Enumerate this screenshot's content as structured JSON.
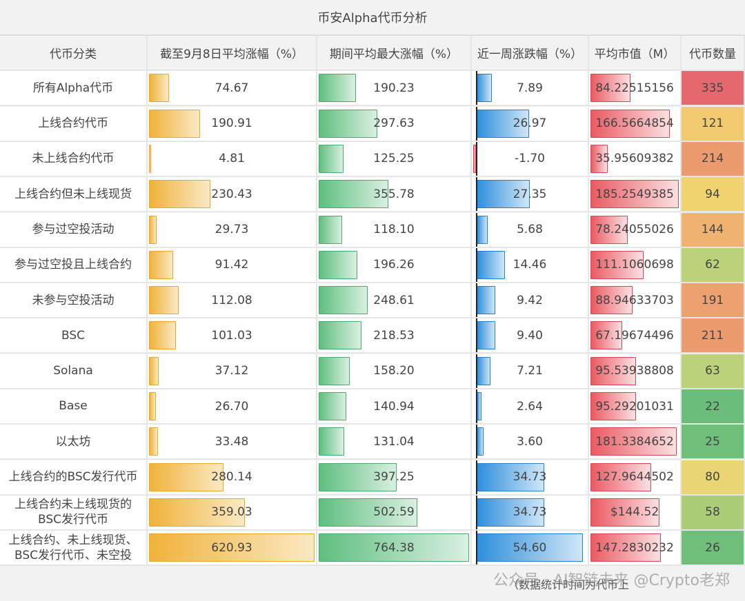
{
  "title": "币安Alpha代币分析",
  "chart_data": {
    "type": "table",
    "columns": [
      "代币分类",
      "截至9月8日平均涨幅（%）",
      "期间平均最大涨幅（%）",
      "近一周涨跌幅（%）",
      "平均市值（M）",
      "代币数量"
    ],
    "rows": [
      {
        "category": "所有Alpha代币",
        "avg_gain": "74.67",
        "avg_max_gain": "190.23",
        "weekly_change": "7.89",
        "avg_mcap": "84.22515156",
        "count": "335",
        "count_color": "#e5686e"
      },
      {
        "category": "上线合约代币",
        "avg_gain": "190.91",
        "avg_max_gain": "297.63",
        "weekly_change": "26.97",
        "avg_mcap": "166.5664854",
        "count": "121",
        "count_color": "#f1c96f"
      },
      {
        "category": "未上线合约代币",
        "avg_gain": "4.81",
        "avg_max_gain": "125.25",
        "weekly_change": "-1.70",
        "avg_mcap": "35.95609382",
        "count": "214",
        "count_color": "#ec9b6f"
      },
      {
        "category": "上线合约但未上线现货",
        "avg_gain": "230.43",
        "avg_max_gain": "355.78",
        "weekly_change": "27.35",
        "avg_mcap": "185.2549385",
        "count": "94",
        "count_color": "#f0d36f"
      },
      {
        "category": "参与过空投活动",
        "avg_gain": "29.73",
        "avg_max_gain": "118.10",
        "weekly_change": "5.68",
        "avg_mcap": "78.24055026",
        "count": "144",
        "count_color": "#efb270"
      },
      {
        "category": "参与过空投且上线合约",
        "avg_gain": "91.42",
        "avg_max_gain": "196.26",
        "weekly_change": "14.46",
        "avg_mcap": "111.1060698",
        "count": "62",
        "count_color": "#bcd27a"
      },
      {
        "category": "未参与空投活动",
        "avg_gain": "112.08",
        "avg_max_gain": "248.61",
        "weekly_change": "9.42",
        "avg_mcap": "88.94633703",
        "count": "191",
        "count_color": "#eda170"
      },
      {
        "category": "BSC",
        "avg_gain": "101.03",
        "avg_max_gain": "218.53",
        "weekly_change": "9.40",
        "avg_mcap": "67.19674496",
        "count": "211",
        "count_color": "#ec9b6f"
      },
      {
        "category": "Solana",
        "avg_gain": "37.12",
        "avg_max_gain": "158.20",
        "weekly_change": "7.21",
        "avg_mcap": "95.53938808",
        "count": "63",
        "count_color": "#bcd27a"
      },
      {
        "category": "Base",
        "avg_gain": "26.70",
        "avg_max_gain": "140.94",
        "weekly_change": "2.64",
        "avg_mcap": "95.29201031",
        "count": "22",
        "count_color": "#6bbd7b"
      },
      {
        "category": "以太坊",
        "avg_gain": "33.48",
        "avg_max_gain": "131.04",
        "weekly_change": "3.60",
        "avg_mcap": "181.3384652",
        "count": "25",
        "count_color": "#6fbf7b"
      },
      {
        "category": "上线合约的BSC发行代币",
        "avg_gain": "280.14",
        "avg_max_gain": "397.25",
        "weekly_change": "34.73",
        "avg_mcap": "127.9644502",
        "count": "80",
        "count_color": "#e9d574"
      },
      {
        "category": "上线合约未上线现货的BSC发行代币",
        "avg_gain": "359.03",
        "avg_max_gain": "502.59",
        "weekly_change": "34.73",
        "avg_mcap": "$144.52",
        "count": "58",
        "count_color": "#abcd78"
      },
      {
        "category": "上线合约、未上线现货、BSC发行代币、未空投",
        "avg_gain": "620.93",
        "avg_max_gain": "764.38",
        "weekly_change": "54.60",
        "avg_mcap": "147.2830232",
        "count": "26",
        "count_color": "#6fbf7b"
      }
    ]
  },
  "footer": {
    "note": "（数据统计时间为代币上",
    "watermark": "公众号 · AI智链未来 @Crypto老郑"
  }
}
